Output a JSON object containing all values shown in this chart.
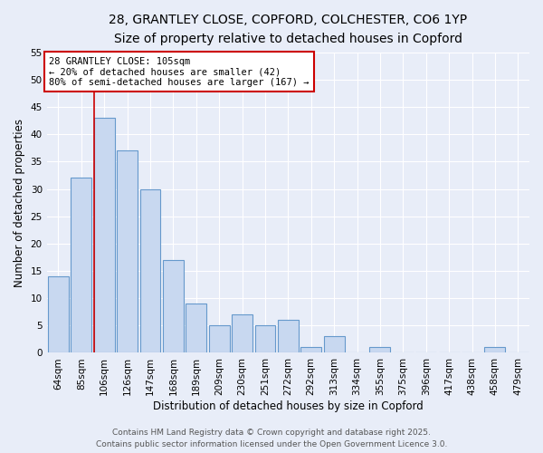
{
  "title_line1": "28, GRANTLEY CLOSE, COPFORD, COLCHESTER, CO6 1YP",
  "title_line2": "Size of property relative to detached houses in Copford",
  "xlabel": "Distribution of detached houses by size in Copford",
  "ylabel": "Number of detached properties",
  "bar_labels": [
    "64sqm",
    "85sqm",
    "106sqm",
    "126sqm",
    "147sqm",
    "168sqm",
    "189sqm",
    "209sqm",
    "230sqm",
    "251sqm",
    "272sqm",
    "292sqm",
    "313sqm",
    "334sqm",
    "355sqm",
    "375sqm",
    "396sqm",
    "417sqm",
    "438sqm",
    "458sqm",
    "479sqm"
  ],
  "bar_values": [
    14,
    32,
    43,
    37,
    30,
    17,
    9,
    5,
    7,
    5,
    6,
    1,
    3,
    0,
    1,
    0,
    0,
    0,
    0,
    1,
    0
  ],
  "bar_color": "#c8d8f0",
  "bar_edge_color": "#6699cc",
  "highlight_index": 2,
  "annotation_text": "28 GRANTLEY CLOSE: 105sqm\n← 20% of detached houses are smaller (42)\n80% of semi-detached houses are larger (167) →",
  "annotation_box_facecolor": "#ffffff",
  "annotation_box_edgecolor": "#cc0000",
  "ylim": [
    0,
    55
  ],
  "yticks": [
    0,
    5,
    10,
    15,
    20,
    25,
    30,
    35,
    40,
    45,
    50,
    55
  ],
  "background_color": "#e8edf8",
  "grid_color": "#ffffff",
  "footer_line1": "Contains HM Land Registry data © Crown copyright and database right 2025.",
  "footer_line2": "Contains public sector information licensed under the Open Government Licence 3.0.",
  "title_fontsize": 10,
  "subtitle_fontsize": 9,
  "axis_label_fontsize": 8.5,
  "tick_fontsize": 7.5,
  "annotation_fontsize": 7.5,
  "footer_fontsize": 6.5
}
